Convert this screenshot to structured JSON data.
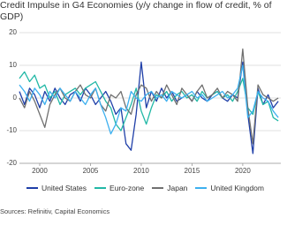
{
  "chart_data": {
    "type": "line",
    "title": "Credit Impulse in G4 Economies (y/y change in flow of credit, % of GDP)",
    "source": "Sources: Refinitiv, Capital Economics",
    "x": [
      1998,
      1998.5,
      1999,
      1999.5,
      2000,
      2000.5,
      2001,
      2001.5,
      2002,
      2002.5,
      2003,
      2003.5,
      2004,
      2004.5,
      2005,
      2005.5,
      2006,
      2006.5,
      2007,
      2007.5,
      2008,
      2008.5,
      2009,
      2009.5,
      2010,
      2010.5,
      2011,
      2011.5,
      2012,
      2012.5,
      2013,
      2013.5,
      2014,
      2014.5,
      2015,
      2015.5,
      2016,
      2016.5,
      2017,
      2017.5,
      2018,
      2018.5,
      2019,
      2019.5,
      2020,
      2020.5,
      2021,
      2021.5,
      2022,
      2022.5,
      2023,
      2023.5
    ],
    "series": [
      {
        "name": "United States",
        "color": "#1f3fa8",
        "values": [
          2,
          -2,
          3,
          1,
          -3,
          2,
          -1,
          3,
          0,
          -2,
          1,
          2,
          -1,
          3,
          1,
          -2,
          0,
          2,
          -1,
          -5,
          -3,
          -14,
          -16,
          -5,
          11,
          -3,
          2,
          -1,
          3,
          0,
          2,
          -1,
          0,
          1,
          -1,
          2,
          0,
          -1,
          1,
          2,
          0,
          -1,
          1,
          0,
          11,
          -5,
          -17,
          3,
          -2,
          1,
          -3,
          -1
        ]
      },
      {
        "name": "Euro-zone",
        "color": "#22b8a6",
        "values": [
          6,
          8,
          5,
          7,
          3,
          4,
          0,
          2,
          -2,
          1,
          2,
          3,
          1,
          3,
          4,
          5,
          2,
          -1,
          -3,
          -8,
          -10,
          -6,
          -2,
          3,
          -4,
          -8,
          -3,
          1,
          0,
          2,
          -1,
          1,
          2,
          0,
          1,
          -1,
          2,
          0,
          1,
          2,
          0,
          1,
          -1,
          2,
          6,
          -3,
          -5,
          2,
          -2,
          -1,
          -6,
          -7
        ]
      },
      {
        "name": "Japan",
        "color": "#707070",
        "values": [
          0,
          -3,
          2,
          -1,
          -5,
          -9,
          -2,
          1,
          3,
          0,
          -1,
          2,
          4,
          1,
          0,
          3,
          -2,
          -4,
          1,
          0,
          2,
          -3,
          -5,
          1,
          4,
          3,
          -1,
          2,
          0,
          4,
          1,
          -2,
          3,
          1,
          -1,
          2,
          4,
          0,
          1,
          3,
          0,
          2,
          1,
          -1,
          15,
          -3,
          -14,
          4,
          1,
          0,
          -1,
          0
        ]
      },
      {
        "name": "United Kingdom",
        "color": "#3db0ef",
        "values": [
          4,
          2,
          -1,
          3,
          1,
          -2,
          2,
          0,
          3,
          1,
          -1,
          2,
          0,
          -2,
          1,
          3,
          -2,
          -6,
          -11,
          -8,
          -3,
          -4,
          2,
          0,
          -1,
          1,
          2,
          0,
          1,
          -1,
          2,
          1,
          0,
          1,
          2,
          0,
          1,
          -1,
          0,
          1,
          2,
          0,
          1,
          3,
          10,
          -6,
          -4,
          2,
          0,
          -1,
          -4,
          -6
        ]
      }
    ],
    "xlim": [
      1998,
      2023.75
    ],
    "xticks": [
      2000,
      2005,
      2010,
      2015,
      2020
    ],
    "ylim": [
      -20,
      20
    ],
    "yticks": [
      -20,
      -10,
      0,
      10,
      20
    ],
    "grid": true
  }
}
